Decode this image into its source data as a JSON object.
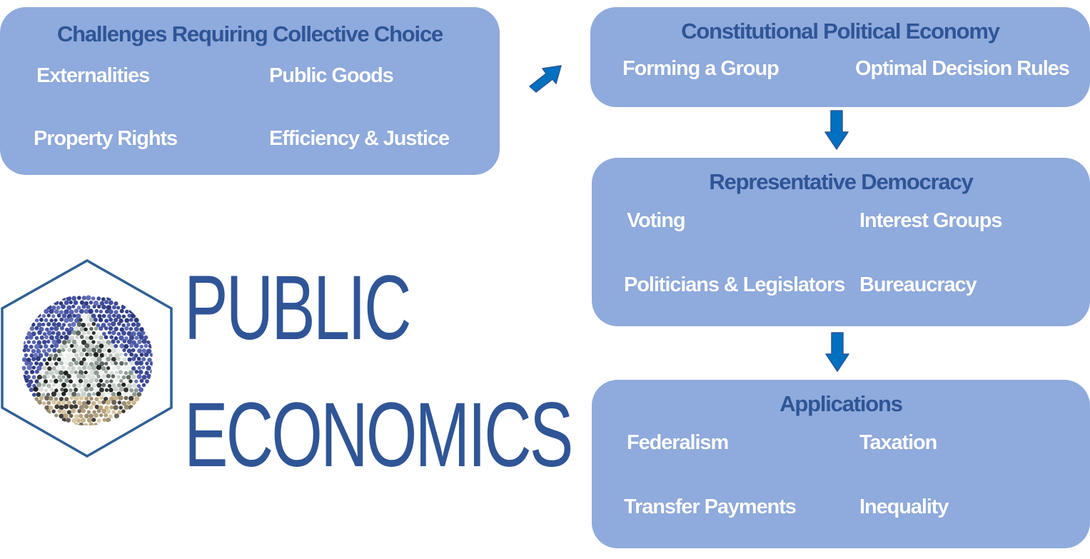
{
  "colors": {
    "box_fill": "#8faadc",
    "title_text": "#2f5597",
    "item_text": "#ffffff",
    "arrow_fill": "#0070c0",
    "arrow_stroke": "#2f5597",
    "logo_border": "#2e6094"
  },
  "challenges": {
    "title": "Challenges Requiring Collective Choice",
    "items": [
      "Externalities",
      "Public Goods",
      "Property Rights",
      "Efficiency & Justice"
    ]
  },
  "constitutional": {
    "title": "Constitutional Political Economy",
    "items": [
      "Forming a Group",
      "Optimal Decision Rules"
    ]
  },
  "representative": {
    "title": "Representative Democracy",
    "items": [
      "Voting",
      "Interest Groups",
      "Politicians & Legislators",
      "Bureaucracy"
    ]
  },
  "applications": {
    "title": "Applications",
    "items": [
      "Federalism",
      "Taxation",
      "Transfer Payments",
      "Inequality"
    ]
  },
  "main_title": {
    "line1": "PUBLIC",
    "line2": "ECONOMICS"
  },
  "icons": {
    "logo": "capitol-dome-hexagon-icon",
    "arrows": [
      "arrow-up-right-icon",
      "arrow-down-icon",
      "arrow-down-icon"
    ]
  }
}
